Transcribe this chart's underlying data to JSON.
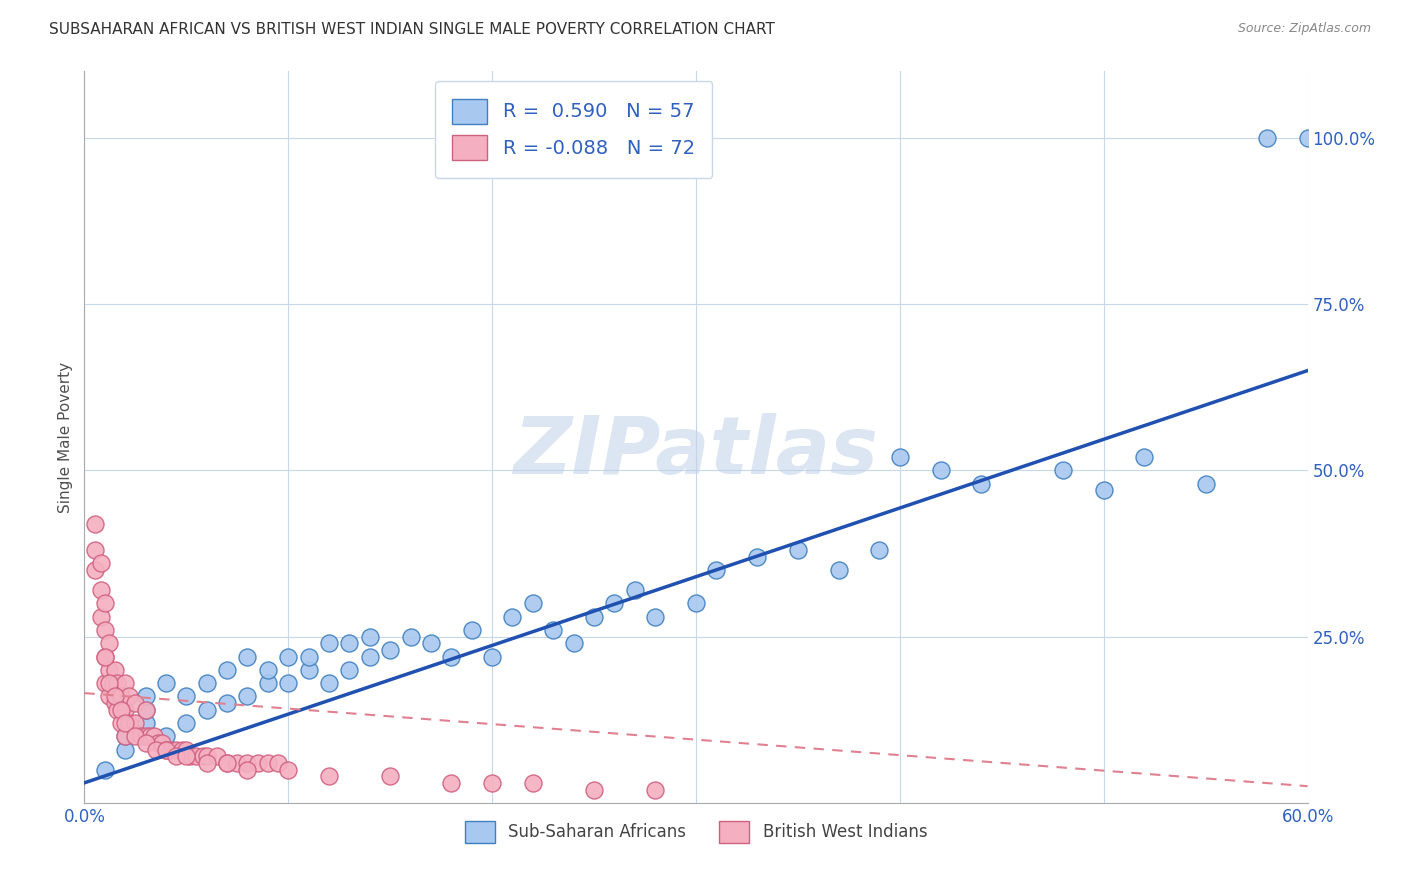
{
  "title": "SUBSAHARAN AFRICAN VS BRITISH WEST INDIAN SINGLE MALE POVERTY CORRELATION CHART",
  "source": "Source: ZipAtlas.com",
  "ylabel": "Single Male Poverty",
  "watermark": "ZIPatlas",
  "xlim": [
    0.0,
    0.6
  ],
  "ylim": [
    0.0,
    1.1
  ],
  "yticks": [
    0.0,
    0.25,
    0.5,
    0.75,
    1.0
  ],
  "ytick_labels": [
    "",
    "25.0%",
    "50.0%",
    "75.0%",
    "100.0%"
  ],
  "xticks": [
    0.0,
    0.1,
    0.2,
    0.3,
    0.4,
    0.5,
    0.6
  ],
  "blue_R": 0.59,
  "blue_N": 57,
  "pink_R": -0.088,
  "pink_N": 72,
  "blue_color": "#a8c8f0",
  "pink_color": "#f4b0c0",
  "blue_edge_color": "#4080c0",
  "pink_edge_color": "#d06080",
  "blue_line_color": "#2050b0",
  "pink_line_color": "#e08090",
  "blue_scatter_x": [
    0.01,
    0.02,
    0.02,
    0.03,
    0.03,
    0.03,
    0.04,
    0.04,
    0.05,
    0.05,
    0.06,
    0.06,
    0.07,
    0.07,
    0.08,
    0.08,
    0.09,
    0.09,
    0.1,
    0.1,
    0.11,
    0.11,
    0.12,
    0.12,
    0.13,
    0.13,
    0.14,
    0.14,
    0.15,
    0.16,
    0.17,
    0.18,
    0.19,
    0.2,
    0.21,
    0.22,
    0.23,
    0.24,
    0.25,
    0.26,
    0.27,
    0.28,
    0.3,
    0.31,
    0.33,
    0.35,
    0.37,
    0.39,
    0.4,
    0.42,
    0.44,
    0.48,
    0.5,
    0.52,
    0.55,
    0.58,
    0.6
  ],
  "blue_scatter_y": [
    0.05,
    0.08,
    0.1,
    0.12,
    0.14,
    0.16,
    0.1,
    0.18,
    0.12,
    0.16,
    0.14,
    0.18,
    0.15,
    0.2,
    0.16,
    0.22,
    0.18,
    0.2,
    0.18,
    0.22,
    0.2,
    0.22,
    0.18,
    0.24,
    0.2,
    0.24,
    0.22,
    0.25,
    0.23,
    0.25,
    0.24,
    0.22,
    0.26,
    0.22,
    0.28,
    0.3,
    0.26,
    0.24,
    0.28,
    0.3,
    0.32,
    0.28,
    0.3,
    0.35,
    0.37,
    0.38,
    0.35,
    0.38,
    0.52,
    0.5,
    0.48,
    0.5,
    0.47,
    0.52,
    0.48,
    1.0,
    1.0
  ],
  "pink_scatter_x": [
    0.005,
    0.005,
    0.005,
    0.008,
    0.008,
    0.008,
    0.01,
    0.01,
    0.01,
    0.01,
    0.012,
    0.012,
    0.012,
    0.014,
    0.015,
    0.015,
    0.016,
    0.016,
    0.018,
    0.018,
    0.02,
    0.02,
    0.02,
    0.022,
    0.022,
    0.025,
    0.025,
    0.028,
    0.03,
    0.03,
    0.032,
    0.034,
    0.036,
    0.038,
    0.04,
    0.042,
    0.045,
    0.048,
    0.05,
    0.052,
    0.055,
    0.058,
    0.06,
    0.065,
    0.07,
    0.075,
    0.08,
    0.085,
    0.09,
    0.095,
    0.01,
    0.012,
    0.015,
    0.018,
    0.02,
    0.025,
    0.03,
    0.035,
    0.04,
    0.045,
    0.05,
    0.06,
    0.07,
    0.08,
    0.1,
    0.12,
    0.15,
    0.18,
    0.2,
    0.22,
    0.25,
    0.28
  ],
  "pink_scatter_y": [
    0.35,
    0.38,
    0.42,
    0.28,
    0.32,
    0.36,
    0.18,
    0.22,
    0.26,
    0.3,
    0.16,
    0.2,
    0.24,
    0.18,
    0.15,
    0.2,
    0.14,
    0.18,
    0.12,
    0.16,
    0.1,
    0.14,
    0.18,
    0.12,
    0.16,
    0.12,
    0.15,
    0.1,
    0.1,
    0.14,
    0.1,
    0.1,
    0.09,
    0.09,
    0.08,
    0.08,
    0.08,
    0.08,
    0.08,
    0.07,
    0.07,
    0.07,
    0.07,
    0.07,
    0.06,
    0.06,
    0.06,
    0.06,
    0.06,
    0.06,
    0.22,
    0.18,
    0.16,
    0.14,
    0.12,
    0.1,
    0.09,
    0.08,
    0.08,
    0.07,
    0.07,
    0.06,
    0.06,
    0.05,
    0.05,
    0.04,
    0.04,
    0.03,
    0.03,
    0.03,
    0.02,
    0.02
  ]
}
